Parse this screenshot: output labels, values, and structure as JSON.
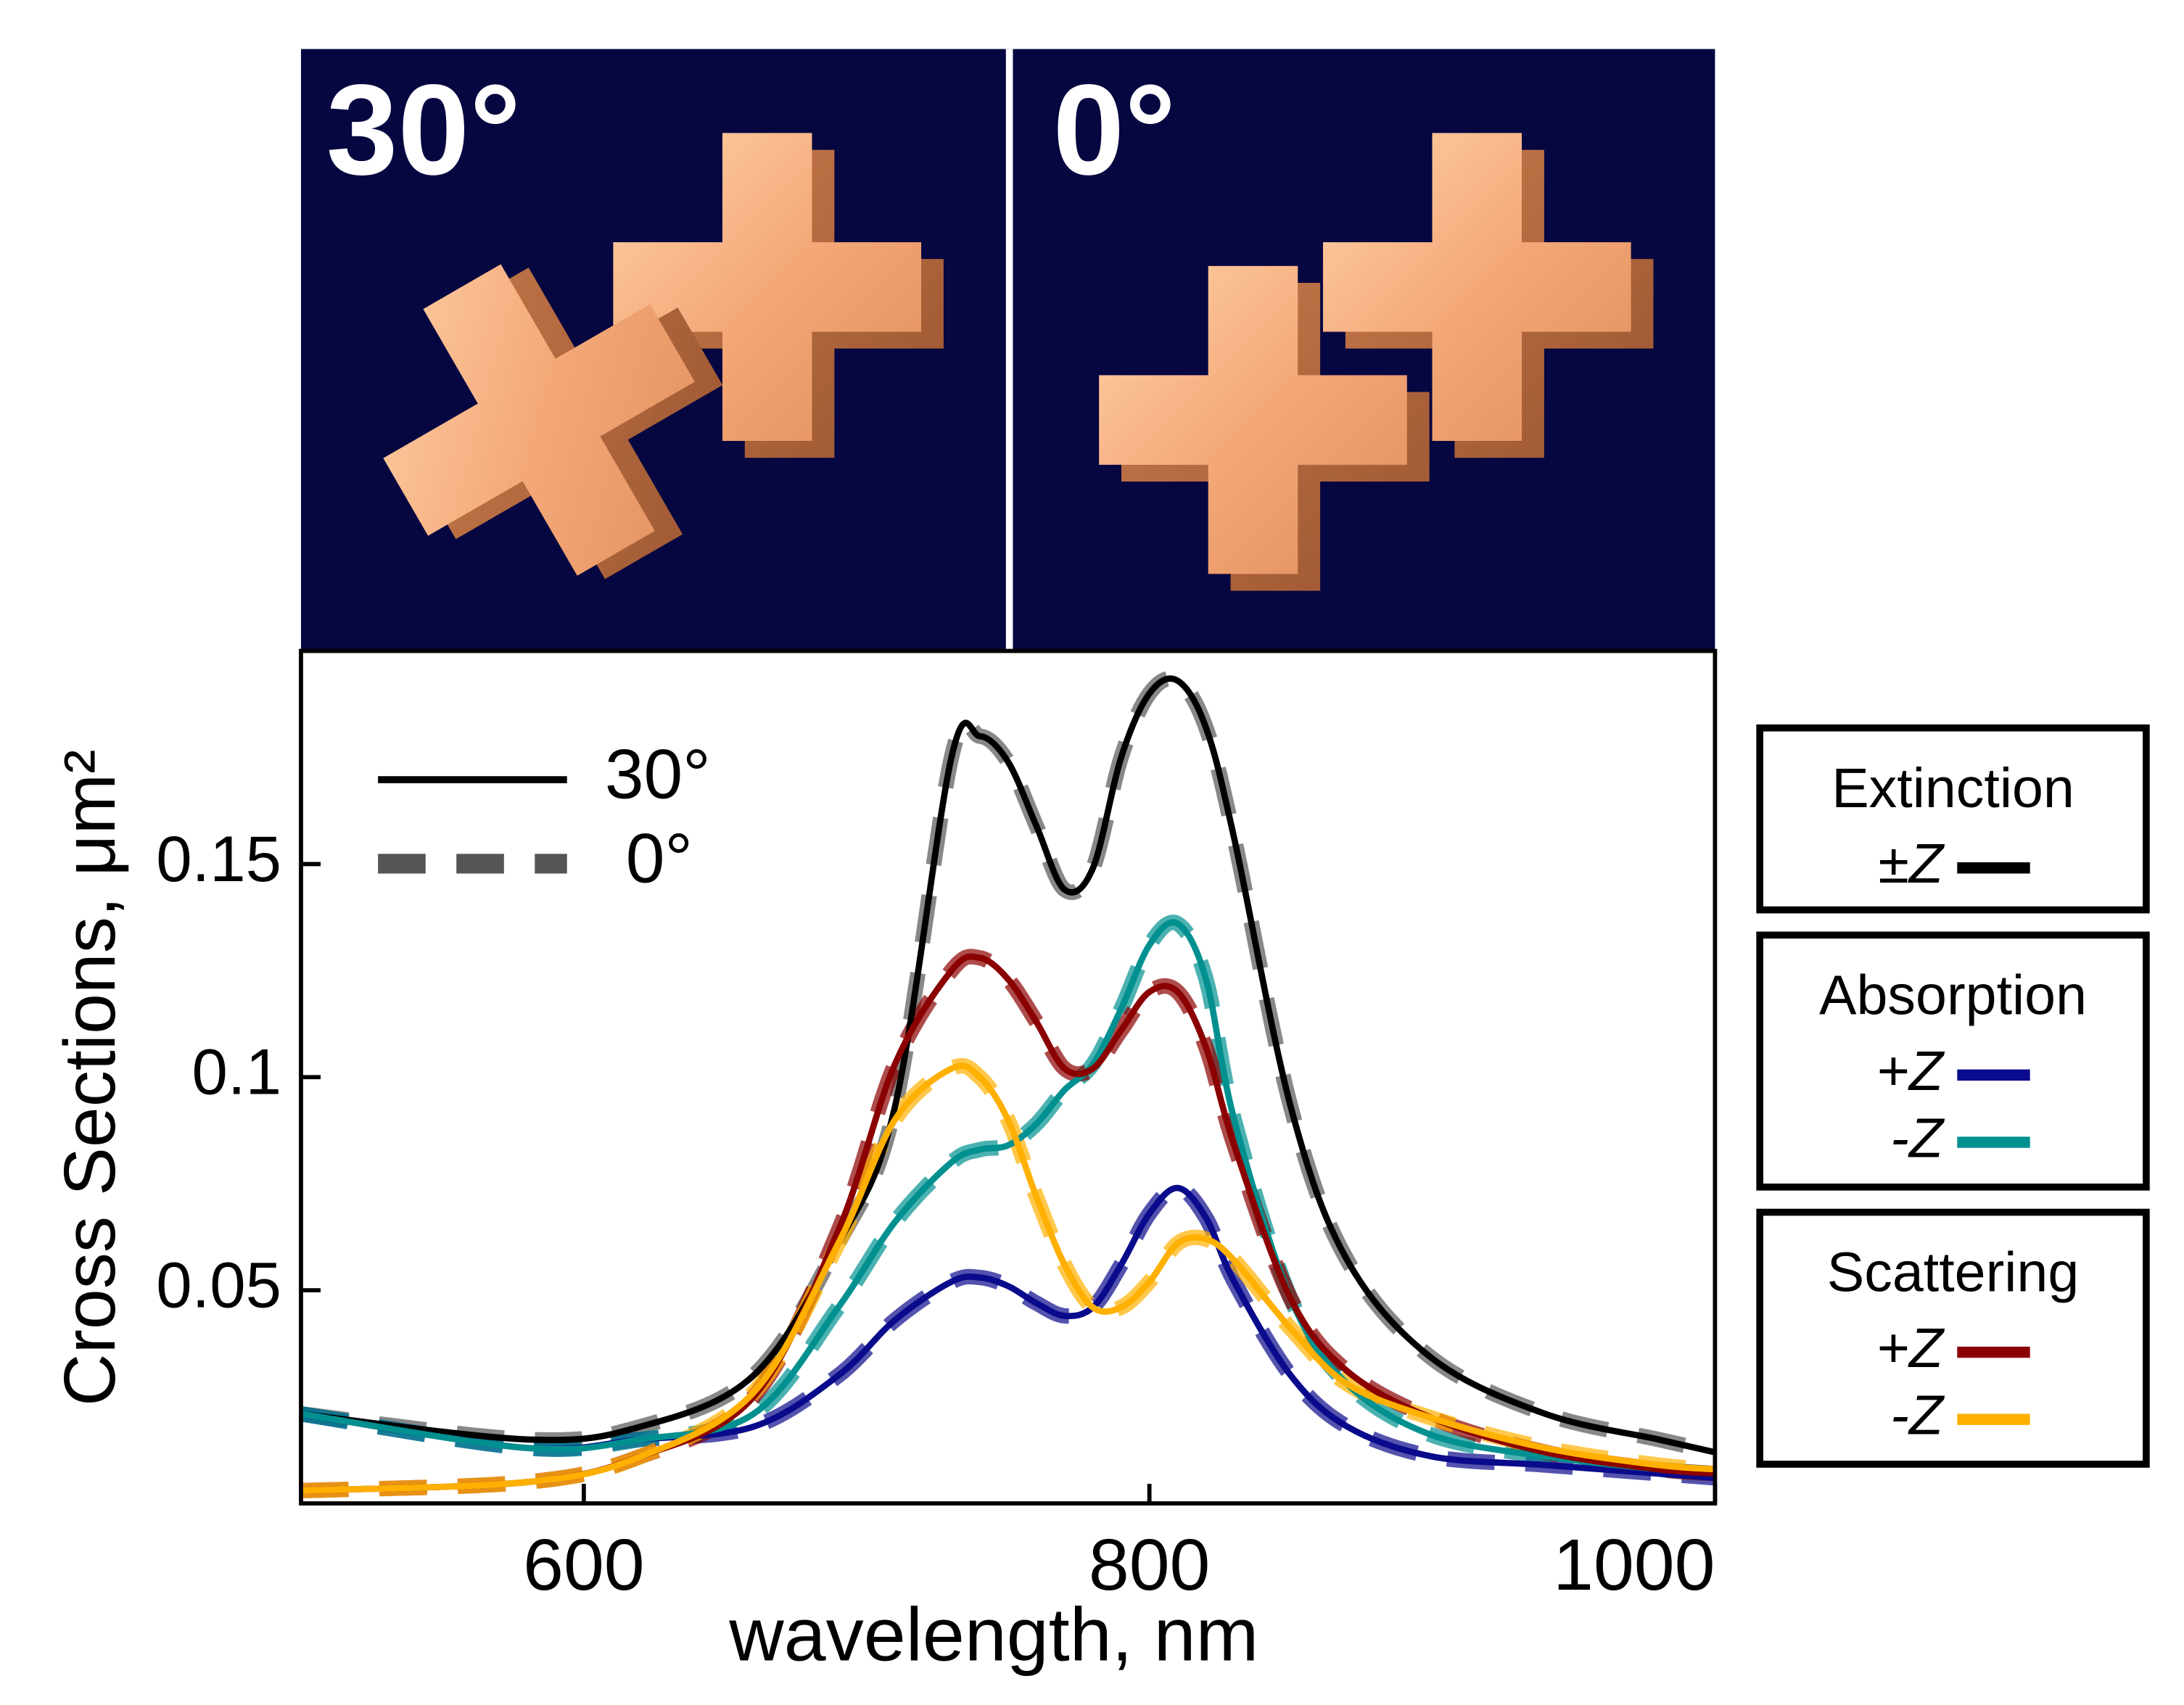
{
  "chart_data": {
    "type": "line",
    "panels": [
      "30°",
      "0°"
    ],
    "xlabel": "wavelength, nm",
    "ylabel": "Cross Sections, μm²",
    "xlim": [
      500,
      1000
    ],
    "xticks": [
      600,
      800,
      1000
    ],
    "ylim": [
      0,
      0.2
    ],
    "yticks": [
      0.05,
      0.1,
      0.15
    ],
    "style_legend": [
      {
        "label": "30°",
        "dashed": false
      },
      {
        "label": "0°",
        "dashed": true
      }
    ],
    "color_legend": [
      {
        "title": "Extinction",
        "entries": [
          {
            "label": "±Z",
            "color": "#000000"
          }
        ]
      },
      {
        "title": "Absorption",
        "entries": [
          {
            "label": "+Z",
            "color": "#0a0a8c"
          },
          {
            "label": "-Z",
            "color": "#009090"
          }
        ]
      },
      {
        "title": "Scattering",
        "entries": [
          {
            "label": "+Z",
            "color": "#8b0000"
          },
          {
            "label": "-Z",
            "color": "#ffb000"
          }
        ]
      }
    ],
    "x": [
      500,
      580,
      620,
      660,
      690,
      710,
      730,
      740,
      750,
      760,
      770,
      780,
      790,
      800,
      810,
      820,
      830,
      850,
      870,
      900,
      940,
      980,
      1000
    ],
    "series": [
      {
        "color": "#555555",
        "dashed": true,
        "values": [
          0.021,
          0.015,
          0.018,
          0.03,
          0.061,
          0.093,
          0.175,
          0.18,
          0.174,
          0.159,
          0.144,
          0.149,
          0.175,
          0.19,
          0.193,
          0.182,
          0.156,
          0.093,
          0.057,
          0.034,
          0.021,
          0.015,
          0.012
        ]
      },
      {
        "color": "#0a0a8c",
        "dashed": true,
        "values": [
          0.021,
          0.013,
          0.015,
          0.018,
          0.03,
          0.043,
          0.052,
          0.053,
          0.051,
          0.047,
          0.044,
          0.046,
          0.056,
          0.068,
          0.074,
          0.067,
          0.052,
          0.03,
          0.018,
          0.011,
          0.009,
          0.007,
          0.006
        ]
      },
      {
        "color": "#009090",
        "dashed": true,
        "values": [
          0.021,
          0.013,
          0.015,
          0.021,
          0.046,
          0.066,
          0.08,
          0.083,
          0.084,
          0.089,
          0.097,
          0.103,
          0.116,
          0.131,
          0.136,
          0.123,
          0.09,
          0.048,
          0.028,
          0.016,
          0.011,
          0.008,
          0.007
        ]
      },
      {
        "color": "#8b0000",
        "dashed": true,
        "values": [
          0.003,
          0.005,
          0.011,
          0.025,
          0.064,
          0.103,
          0.125,
          0.128,
          0.123,
          0.113,
          0.102,
          0.102,
          0.111,
          0.12,
          0.12,
          0.107,
          0.084,
          0.048,
          0.031,
          0.02,
          0.012,
          0.008,
          0.007
        ]
      },
      {
        "color": "#ffb000",
        "dashed": true,
        "values": [
          0.003,
          0.005,
          0.011,
          0.026,
          0.061,
          0.09,
          0.102,
          0.1,
          0.09,
          0.072,
          0.056,
          0.046,
          0.046,
          0.052,
          0.061,
          0.062,
          0.057,
          0.041,
          0.028,
          0.02,
          0.013,
          0.009,
          0.008
        ]
      },
      {
        "color": "#000000",
        "dashed": false,
        "values": [
          0.021,
          0.015,
          0.018,
          0.03,
          0.061,
          0.093,
          0.175,
          0.18,
          0.174,
          0.159,
          0.144,
          0.149,
          0.175,
          0.19,
          0.193,
          0.182,
          0.156,
          0.093,
          0.057,
          0.034,
          0.021,
          0.015,
          0.012
        ]
      },
      {
        "color": "#0a0a8c",
        "dashed": false,
        "values": [
          0.021,
          0.013,
          0.015,
          0.018,
          0.03,
          0.043,
          0.052,
          0.053,
          0.051,
          0.047,
          0.044,
          0.046,
          0.056,
          0.068,
          0.074,
          0.067,
          0.052,
          0.03,
          0.018,
          0.011,
          0.009,
          0.007,
          0.006
        ]
      },
      {
        "color": "#009090",
        "dashed": false,
        "values": [
          0.021,
          0.013,
          0.015,
          0.021,
          0.046,
          0.066,
          0.08,
          0.083,
          0.084,
          0.089,
          0.097,
          0.103,
          0.116,
          0.131,
          0.136,
          0.123,
          0.09,
          0.048,
          0.028,
          0.016,
          0.011,
          0.008,
          0.007
        ]
      },
      {
        "color": "#8b0000",
        "dashed": false,
        "values": [
          0.003,
          0.005,
          0.011,
          0.025,
          0.064,
          0.103,
          0.125,
          0.128,
          0.123,
          0.113,
          0.102,
          0.102,
          0.111,
          0.12,
          0.12,
          0.107,
          0.084,
          0.048,
          0.031,
          0.02,
          0.012,
          0.008,
          0.007
        ]
      },
      {
        "color": "#ffb000",
        "dashed": false,
        "values": [
          0.003,
          0.005,
          0.011,
          0.026,
          0.061,
          0.09,
          0.102,
          0.1,
          0.09,
          0.072,
          0.056,
          0.046,
          0.046,
          0.052,
          0.061,
          0.062,
          0.057,
          0.041,
          0.028,
          0.02,
          0.013,
          0.009,
          0.008
        ]
      }
    ]
  }
}
